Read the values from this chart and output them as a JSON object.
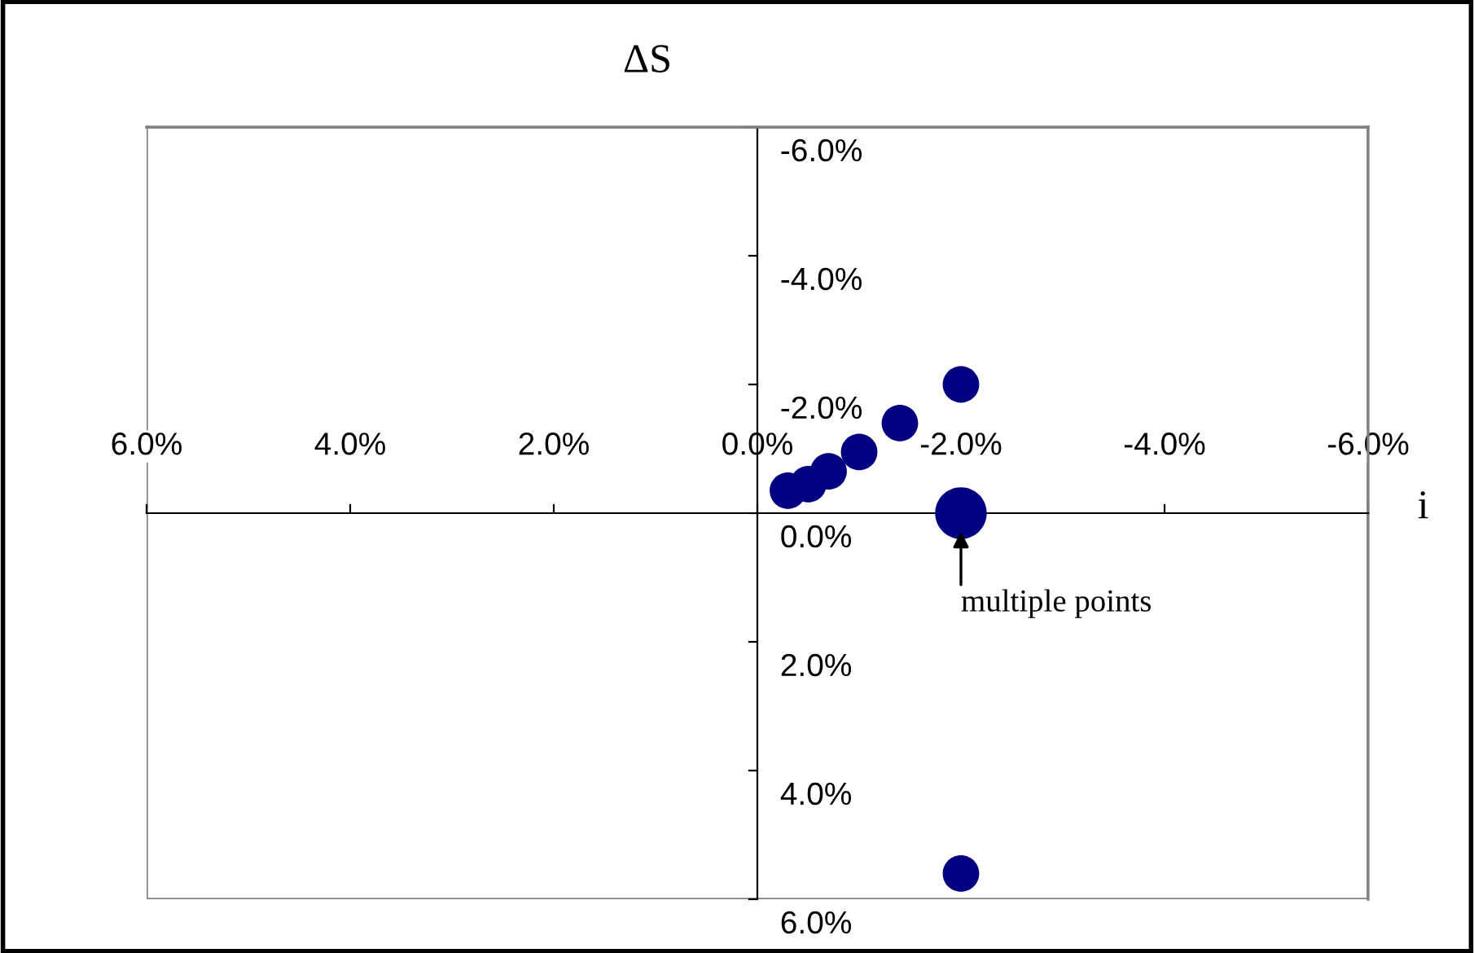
{
  "chart_data": {
    "type": "bubble",
    "xlabel": "i",
    "ylabel": "ΔS",
    "x": [
      -2.0,
      -1.4,
      -1.0,
      -0.7,
      -0.5,
      -0.3,
      -2.0,
      -2.0
    ],
    "values": [
      -2.0,
      -1.4,
      -0.95,
      -0.65,
      -0.45,
      -0.35,
      0.0,
      5.6
    ],
    "sizes": [
      0.5,
      0.5,
      0.5,
      0.5,
      0.5,
      0.5,
      1,
      0.5
    ],
    "color": "#000080",
    "xlim": [
      6,
      -6
    ],
    "ylim": [
      6,
      -6
    ],
    "xticks": [
      {
        "value": 6,
        "label": "6.0%"
      },
      {
        "value": 4,
        "label": "4.0%"
      },
      {
        "value": 2,
        "label": "2.0%"
      },
      {
        "value": 0,
        "label": "0.0%"
      },
      {
        "value": -2,
        "label": "-2.0%"
      },
      {
        "value": -4,
        "label": "-4.0%"
      },
      {
        "value": -6,
        "label": "-6.0%"
      }
    ],
    "yticks": [
      {
        "value": -6,
        "label": "-6.0%"
      },
      {
        "value": -4,
        "label": "-4.0%"
      },
      {
        "value": -2,
        "label": "-2.0%"
      },
      {
        "value": 0,
        "label": "0.0%"
      },
      {
        "value": 2,
        "label": "2.0%"
      },
      {
        "value": 4,
        "label": "4.0%"
      },
      {
        "value": 6,
        "label": "6.0%"
      }
    ],
    "annotations": [
      {
        "text": "multiple points",
        "x": -2.0,
        "y": 0.0
      }
    ],
    "grid": false
  }
}
